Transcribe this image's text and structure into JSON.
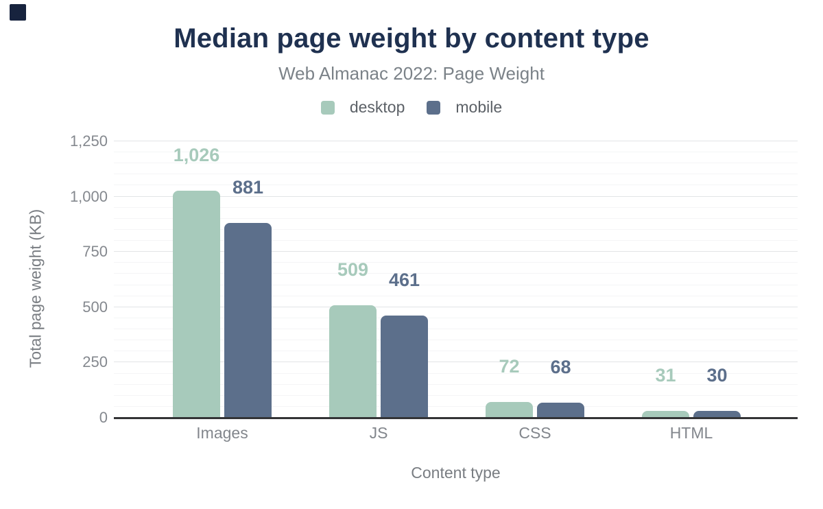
{
  "ui": {
    "logo_color": "#17233e",
    "background_color": "#ffffff",
    "title_color": "#1f3150",
    "axis_line_color": "#333436"
  },
  "header": {
    "title": "Median page weight by content type",
    "subtitle": "Web Almanac 2022: Page Weight"
  },
  "legend": {
    "items": [
      {
        "label": "desktop",
        "color": "#a7cabb"
      },
      {
        "label": "mobile",
        "color": "#5c6f8b"
      }
    ]
  },
  "chart_data": {
    "type": "bar",
    "title": "Median page weight by content type",
    "subtitle": "Web Almanac 2022: Page Weight",
    "categories": [
      "Images",
      "JS",
      "CSS",
      "HTML"
    ],
    "series": [
      {
        "name": "desktop",
        "color": "#a7cabb",
        "values": [
          1026,
          509,
          72,
          31
        ],
        "value_labels": [
          "1,026",
          "509",
          "72",
          "31"
        ]
      },
      {
        "name": "mobile",
        "color": "#5c6f8b",
        "values": [
          881,
          461,
          68,
          30
        ],
        "value_labels": [
          "881",
          "461",
          "68",
          "30"
        ]
      }
    ],
    "xlabel": "Content type",
    "ylabel": "Total page weight (KB)",
    "ylim": [
      0,
      1250
    ],
    "yticks": [
      0,
      250,
      500,
      750,
      1000,
      1250
    ],
    "ytick_labels": [
      "0",
      "250",
      "500",
      "750",
      "1,000",
      "1,250"
    ],
    "grid": {
      "on": true,
      "major_interval": 250,
      "minor_interval": 50
    },
    "legend_position": "top"
  }
}
